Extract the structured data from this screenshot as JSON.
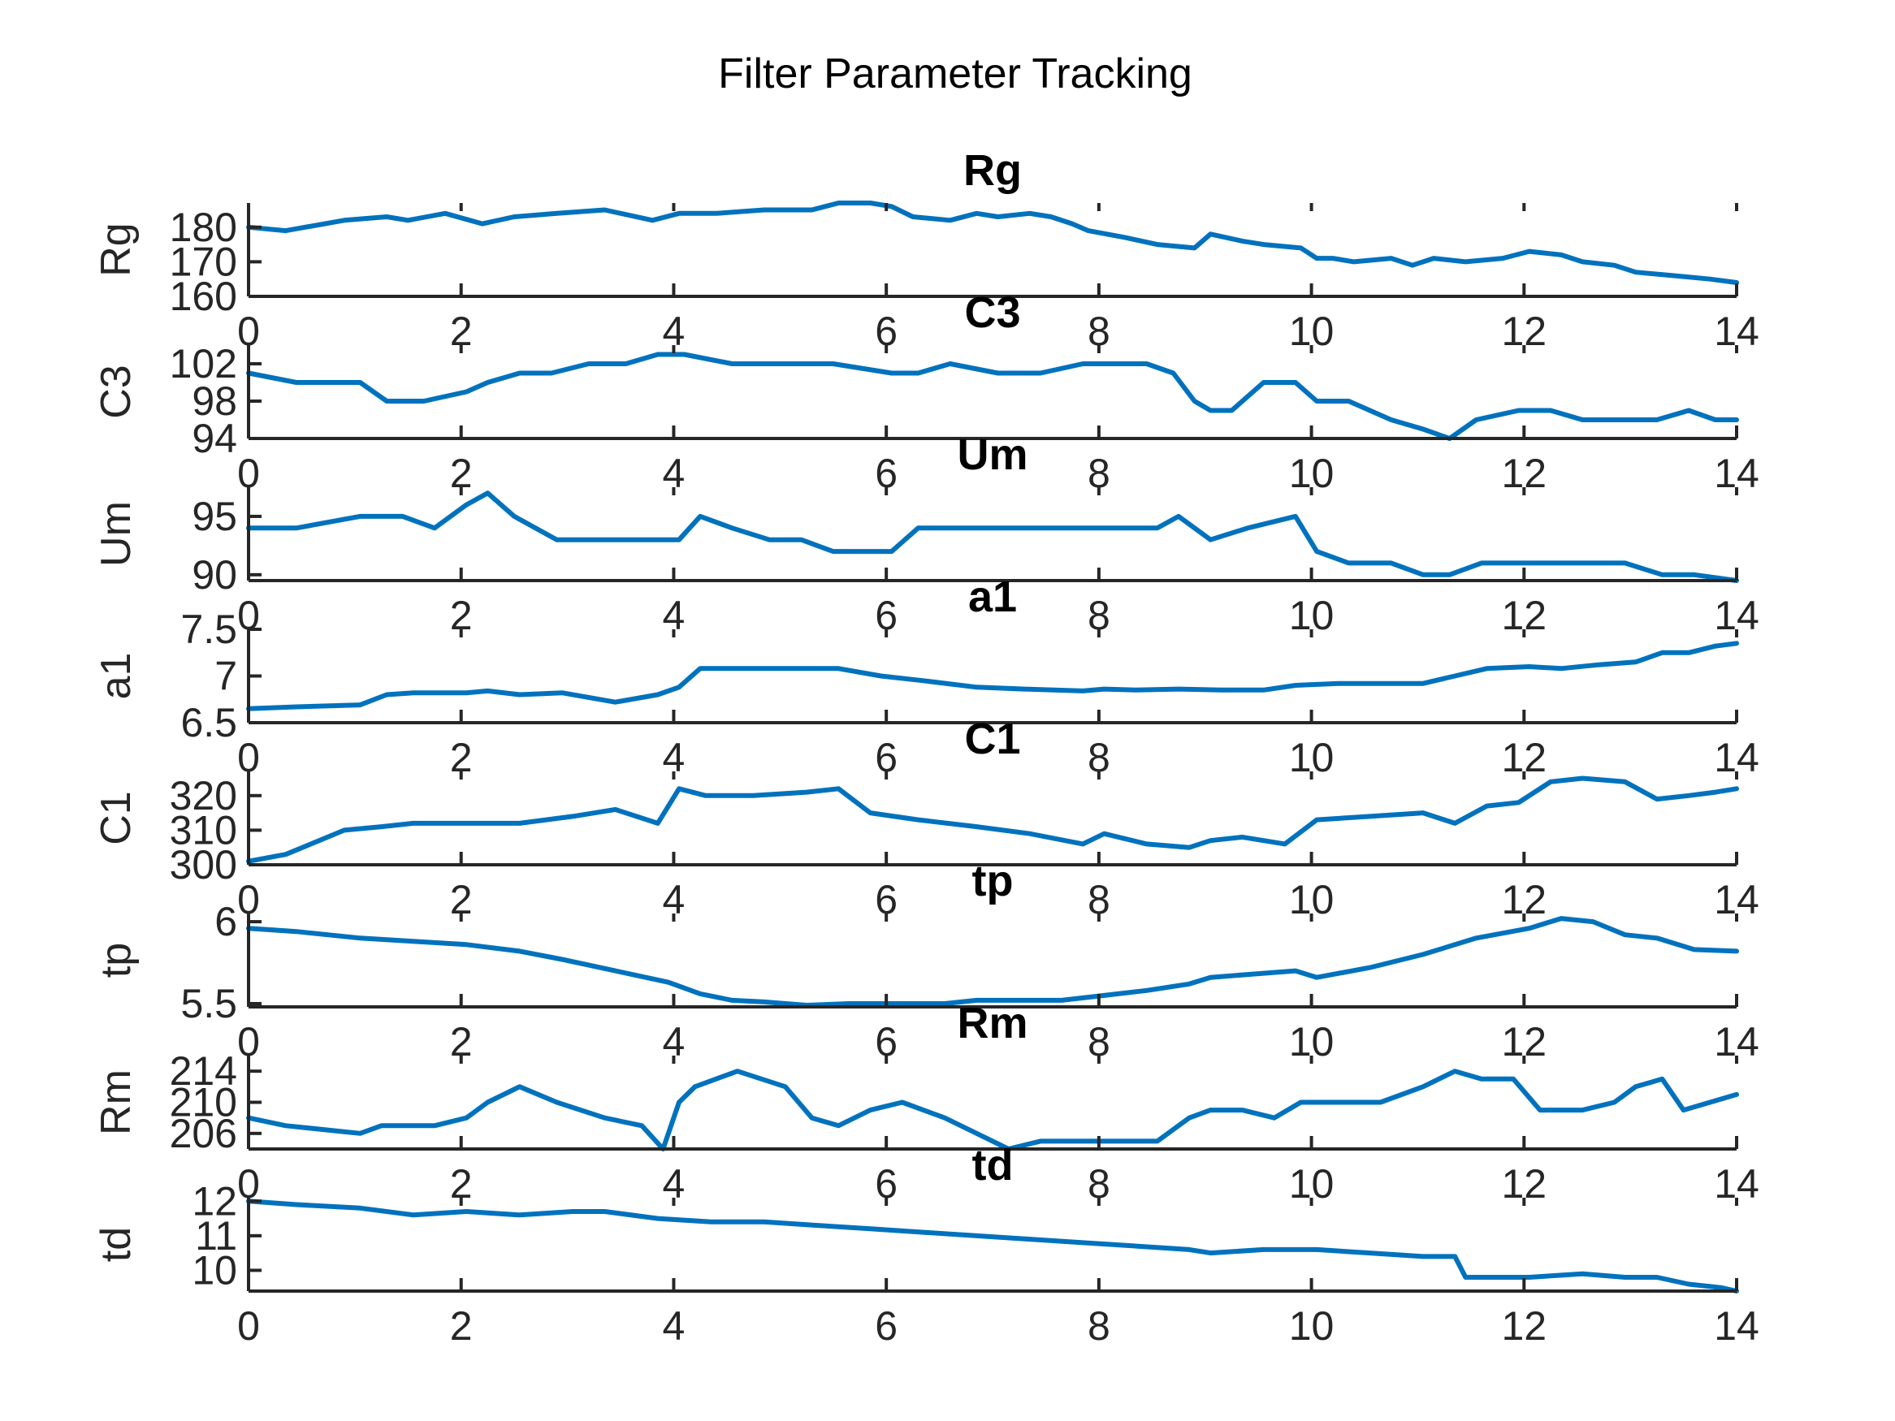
{
  "title": "Filter Parameter Tracking",
  "colors": {
    "series": "#0072BD",
    "axis": "#262626"
  },
  "chart_data": [
    {
      "type": "line",
      "title": "Rg",
      "ylabel": "Rg",
      "xlim": [
        0,
        14
      ],
      "ylim": [
        160,
        187
      ],
      "xticks": [
        "0",
        "2",
        "4",
        "6",
        "8",
        "10",
        "12",
        "14"
      ],
      "yticks": [
        "160",
        "170",
        "180"
      ],
      "ytick_values": [
        160,
        170,
        180
      ],
      "x": [
        0,
        0.35,
        0.9,
        1.3,
        1.5,
        1.85,
        2.2,
        2.5,
        2.9,
        3.35,
        3.8,
        4.05,
        4.4,
        4.85,
        5.3,
        5.55,
        5.85,
        6.05,
        6.25,
        6.6,
        6.85,
        7.05,
        7.35,
        7.55,
        7.75,
        7.9,
        8.25,
        8.55,
        8.9,
        9.05,
        9.35,
        9.55,
        9.9,
        10.05,
        10.2,
        10.4,
        10.75,
        10.95,
        11.15,
        11.45,
        11.8,
        12.05,
        12.35,
        12.55,
        12.85,
        13.05,
        13.4,
        13.75,
        14
      ],
      "values": [
        180,
        179,
        182,
        183,
        182,
        184,
        181,
        183,
        184,
        185,
        182,
        184,
        184,
        185,
        185,
        187,
        187,
        186,
        183,
        182,
        184,
        183,
        184,
        183,
        181,
        179,
        177,
        175,
        174,
        178,
        176,
        175,
        174,
        171,
        171,
        170,
        171,
        169,
        171,
        170,
        171,
        173,
        172,
        170,
        169,
        167,
        166,
        165,
        164
      ]
    },
    {
      "type": "line",
      "title": "C3",
      "ylabel": "C3",
      "xlim": [
        0,
        14
      ],
      "ylim": [
        94,
        104
      ],
      "xticks": [
        "0",
        "2",
        "4",
        "6",
        "8",
        "10",
        "12",
        "14"
      ],
      "yticks": [
        "94",
        "98",
        "102"
      ],
      "ytick_values": [
        94,
        98,
        102
      ],
      "x": [
        0,
        0.45,
        1.05,
        1.3,
        1.65,
        2.05,
        2.25,
        2.55,
        2.85,
        3.2,
        3.55,
        3.85,
        4.1,
        4.55,
        5.05,
        5.5,
        6.05,
        6.3,
        6.6,
        7.05,
        7.45,
        7.85,
        8.1,
        8.45,
        8.7,
        8.9,
        9.05,
        9.25,
        9.55,
        9.85,
        10.05,
        10.35,
        10.75,
        11.05,
        11.3,
        11.55,
        11.95,
        12.25,
        12.55,
        12.95,
        13.25,
        13.55,
        13.8,
        14
      ],
      "values": [
        101,
        100,
        100,
        98,
        98,
        99,
        100,
        101,
        101,
        102,
        102,
        103,
        103,
        102,
        102,
        102,
        101,
        101,
        102,
        101,
        101,
        102,
        102,
        102,
        101,
        98,
        97,
        97,
        100,
        100,
        98,
        98,
        96,
        95,
        94,
        96,
        97,
        97,
        96,
        96,
        96,
        97,
        96,
        96
      ]
    },
    {
      "type": "line",
      "title": "Um",
      "ylabel": "Um",
      "xlim": [
        0,
        14
      ],
      "ylim": [
        89.5,
        97.5
      ],
      "xticks": [
        "0",
        "2",
        "4",
        "6",
        "8",
        "10",
        "12",
        "14"
      ],
      "yticks": [
        "90",
        "95"
      ],
      "ytick_values": [
        90,
        95
      ],
      "x": [
        0,
        0.45,
        1.05,
        1.45,
        1.75,
        2.05,
        2.25,
        2.5,
        2.9,
        3.35,
        3.7,
        4.05,
        4.25,
        4.55,
        4.9,
        5.2,
        5.5,
        5.85,
        6.05,
        6.3,
        6.55,
        6.85,
        7.25,
        7.7,
        8.05,
        8.55,
        8.75,
        9.05,
        9.4,
        9.85,
        10.05,
        10.35,
        10.75,
        11.05,
        11.3,
        11.6,
        11.95,
        12.25,
        12.55,
        12.95,
        13.3,
        13.6,
        14
      ],
      "values": [
        94,
        94,
        95,
        95,
        94,
        96,
        97,
        95,
        93,
        93,
        93,
        93,
        95,
        94,
        93,
        93,
        92,
        92,
        92,
        94,
        94,
        94,
        94,
        94,
        94,
        94,
        95,
        93,
        94,
        95,
        92,
        91,
        91,
        90,
        90,
        91,
        91,
        91,
        91,
        91,
        90,
        90,
        89.5
      ]
    },
    {
      "type": "line",
      "title": "a1",
      "ylabel": "a1",
      "xlim": [
        0,
        14
      ],
      "ylim": [
        6.5,
        7.5
      ],
      "xticks": [
        "0",
        "2",
        "4",
        "6",
        "8",
        "10",
        "12",
        "14"
      ],
      "yticks": [
        "6.5",
        "7",
        "7.5"
      ],
      "ytick_values": [
        6.5,
        7,
        7.5
      ],
      "x": [
        0,
        0.45,
        1.05,
        1.3,
        1.55,
        2.05,
        2.25,
        2.55,
        2.95,
        3.45,
        3.85,
        4.05,
        4.25,
        4.6,
        5.1,
        5.55,
        5.95,
        6.35,
        6.85,
        7.3,
        7.85,
        8.05,
        8.35,
        8.75,
        9.15,
        9.55,
        9.85,
        10.25,
        10.65,
        11.05,
        11.35,
        11.65,
        12.05,
        12.35,
        12.7,
        13.05,
        13.3,
        13.55,
        13.8,
        14
      ],
      "values": [
        6.65,
        6.67,
        6.69,
        6.8,
        6.82,
        6.82,
        6.84,
        6.8,
        6.82,
        6.72,
        6.8,
        6.88,
        7.08,
        7.08,
        7.08,
        7.08,
        7.0,
        6.95,
        6.88,
        6.86,
        6.84,
        6.86,
        6.85,
        6.86,
        6.85,
        6.85,
        6.9,
        6.92,
        6.92,
        6.92,
        7.0,
        7.08,
        7.1,
        7.08,
        7.12,
        7.15,
        7.25,
        7.25,
        7.32,
        7.35
      ]
    },
    {
      "type": "line",
      "title": "C1",
      "ylabel": "C1",
      "xlim": [
        0,
        14
      ],
      "ylim": [
        300,
        327
      ],
      "xticks": [
        "0",
        "2",
        "4",
        "6",
        "8",
        "10",
        "12",
        "14"
      ],
      "yticks": [
        "300",
        "310",
        "320"
      ],
      "ytick_values": [
        300,
        310,
        320
      ],
      "x": [
        0,
        0.35,
        0.9,
        1.25,
        1.55,
        2.05,
        2.55,
        3.05,
        3.45,
        3.85,
        4.05,
        4.3,
        4.75,
        5.25,
        5.55,
        5.85,
        6.3,
        6.85,
        7.35,
        7.85,
        8.05,
        8.45,
        8.85,
        9.05,
        9.35,
        9.75,
        10.05,
        10.55,
        11.05,
        11.35,
        11.65,
        11.95,
        12.25,
        12.55,
        12.95,
        13.25,
        13.55,
        13.8,
        14
      ],
      "values": [
        301,
        303,
        310,
        311,
        312,
        312,
        312,
        314,
        316,
        312,
        322,
        320,
        320,
        321,
        322,
        315,
        313,
        311,
        309,
        306,
        309,
        306,
        305,
        307,
        308,
        306,
        313,
        314,
        315,
        312,
        317,
        318,
        324,
        325,
        324,
        319,
        320,
        321,
        322
      ]
    },
    {
      "type": "line",
      "title": "tp",
      "ylabel": "tp",
      "xlim": [
        0,
        14
      ],
      "ylim": [
        5.48,
        6.05
      ],
      "xticks": [
        "0",
        "2",
        "4",
        "6",
        "8",
        "10",
        "12",
        "14"
      ],
      "yticks": [
        "5.5",
        "6"
      ],
      "ytick_values": [
        5.5,
        6
      ],
      "x": [
        0,
        0.45,
        1.05,
        1.55,
        2.05,
        2.55,
        2.95,
        3.45,
        3.95,
        4.25,
        4.55,
        4.85,
        5.25,
        5.65,
        6.05,
        6.55,
        6.85,
        7.25,
        7.65,
        8.05,
        8.45,
        8.85,
        9.05,
        9.45,
        9.85,
        10.05,
        10.55,
        11.05,
        11.55,
        12.05,
        12.35,
        12.65,
        12.95,
        13.25,
        13.6,
        14
      ],
      "values": [
        5.96,
        5.94,
        5.9,
        5.88,
        5.86,
        5.82,
        5.77,
        5.7,
        5.63,
        5.56,
        5.52,
        5.51,
        5.49,
        5.5,
        5.5,
        5.5,
        5.52,
        5.52,
        5.52,
        5.55,
        5.58,
        5.62,
        5.66,
        5.68,
        5.7,
        5.66,
        5.72,
        5.8,
        5.9,
        5.96,
        6.02,
        6.0,
        5.92,
        5.9,
        5.83,
        5.82
      ]
    },
    {
      "type": "line",
      "title": "Rm",
      "ylabel": "Rm",
      "xlim": [
        0,
        14
      ],
      "ylim": [
        204,
        216
      ],
      "xticks": [
        "0",
        "2",
        "4",
        "6",
        "8",
        "10",
        "12",
        "14"
      ],
      "yticks": [
        "206",
        "210",
        "214"
      ],
      "ytick_values": [
        206,
        210,
        214
      ],
      "x": [
        0,
        0.35,
        1.05,
        1.25,
        1.75,
        2.05,
        2.25,
        2.55,
        2.9,
        3.35,
        3.7,
        3.9,
        4.05,
        4.2,
        4.6,
        5.05,
        5.3,
        5.55,
        5.85,
        6.15,
        6.55,
        6.85,
        7.15,
        7.45,
        7.85,
        8.15,
        8.55,
        8.85,
        9.05,
        9.35,
        9.65,
        9.9,
        10.05,
        10.35,
        10.65,
        11.05,
        11.35,
        11.6,
        11.9,
        12.15,
        12.55,
        12.85,
        13.05,
        13.3,
        13.5,
        13.75,
        14
      ],
      "values": [
        208,
        207,
        206,
        207,
        207,
        208,
        210,
        212,
        210,
        208,
        207,
        204,
        210,
        212,
        214,
        212,
        208,
        207,
        209,
        210,
        208,
        206,
        204,
        205,
        205,
        205,
        205,
        208,
        209,
        209,
        208,
        210,
        210,
        210,
        210,
        212,
        214,
        213,
        213,
        209,
        209,
        210,
        212,
        213,
        209,
        210,
        211
      ]
    },
    {
      "type": "line",
      "title": "td",
      "ylabel": "td",
      "xlim": [
        0,
        14
      ],
      "ylim": [
        9.4,
        12.1
      ],
      "xticks": [
        "0",
        "2",
        "4",
        "6",
        "8",
        "10",
        "12",
        "14"
      ],
      "yticks": [
        "10",
        "11",
        "12"
      ],
      "ytick_values": [
        10,
        11,
        12
      ],
      "x": [
        0,
        0.45,
        1.05,
        1.55,
        2.05,
        2.55,
        3.05,
        3.35,
        3.85,
        4.35,
        4.85,
        5.35,
        5.85,
        6.35,
        6.85,
        7.35,
        7.85,
        8.35,
        8.85,
        9.05,
        9.55,
        9.85,
        10.05,
        10.55,
        11.05,
        11.35,
        11.45,
        11.75,
        12.05,
        12.55,
        12.95,
        13.25,
        13.55,
        13.85,
        14
      ],
      "values": [
        12,
        11.9,
        11.8,
        11.6,
        11.7,
        11.6,
        11.7,
        11.7,
        11.5,
        11.4,
        11.4,
        11.3,
        11.2,
        11.1,
        11.0,
        10.9,
        10.8,
        10.7,
        10.6,
        10.5,
        10.6,
        10.6,
        10.6,
        10.5,
        10.4,
        10.4,
        9.8,
        9.8,
        9.8,
        9.9,
        9.8,
        9.8,
        9.6,
        9.5,
        9.4
      ]
    }
  ]
}
